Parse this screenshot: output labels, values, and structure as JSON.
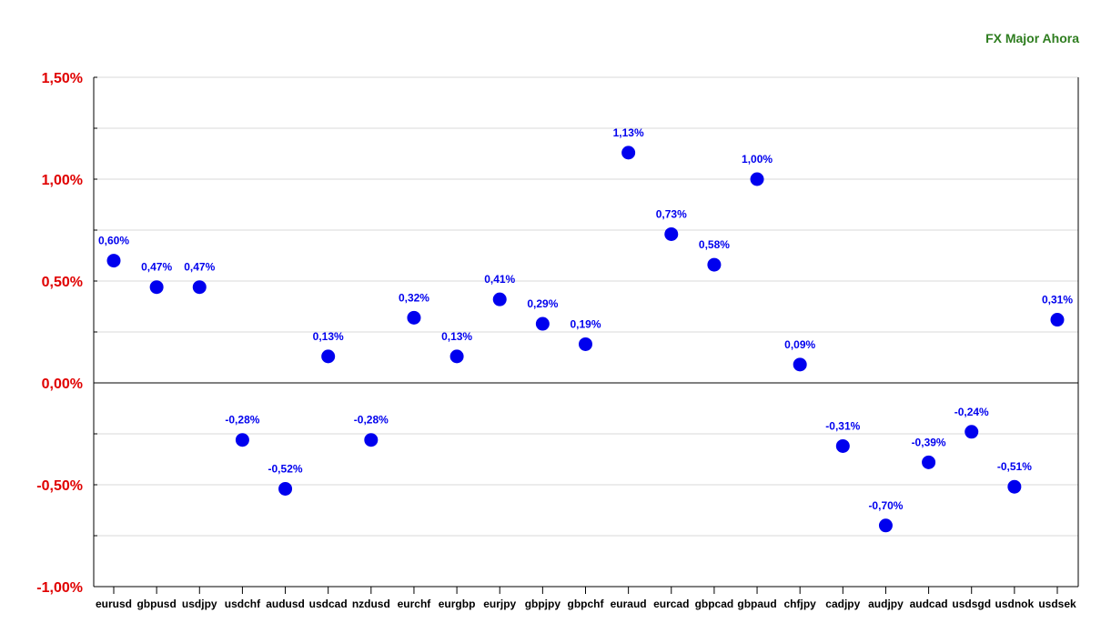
{
  "brand_label": "FX Major Ahora",
  "colors": {
    "brand": "#2e7d1f",
    "ytick": "#e00000",
    "points": "#0000ee",
    "labels": "#0000ee",
    "grid": "#d9d9d9",
    "axis": "#000000"
  },
  "chart_data": {
    "type": "scatter",
    "title": "",
    "xlabel": "",
    "ylabel": "",
    "ylim": [
      -1.0,
      1.5
    ],
    "ytick_values": [
      -1.0,
      -0.5,
      0.0,
      0.5,
      1.0,
      1.5
    ],
    "ytick_labels": [
      "-1,00%",
      "-0,50%",
      "0,00%",
      "0,50%",
      "1,00%",
      "1,50%"
    ],
    "minor_tick_step": 0.25,
    "grid": true,
    "legend": "none",
    "categories": [
      "eurusd",
      "gbpusd",
      "usdjpy",
      "usdchf",
      "audusd",
      "usdcad",
      "nzdusd",
      "eurchf",
      "eurgbp",
      "eurjpy",
      "gbpjpy",
      "gbpchf",
      "euraud",
      "eurcad",
      "gbpcad",
      "gbpaud",
      "chfjpy",
      "cadjpy",
      "audjpy",
      "audcad",
      "usdsgd",
      "usdnok",
      "usdsek"
    ],
    "values": [
      0.6,
      0.47,
      0.47,
      -0.28,
      -0.52,
      0.13,
      -0.28,
      0.32,
      0.13,
      0.41,
      0.29,
      0.19,
      1.13,
      0.73,
      0.58,
      1.0,
      0.09,
      -0.31,
      -0.7,
      -0.39,
      -0.24,
      -0.51,
      0.31
    ],
    "labels": [
      "0,60%",
      "0,47%",
      "0,47%",
      "-0,28%",
      "-0,52%",
      "0,13%",
      "-0,28%",
      "0,32%",
      "0,13%",
      "0,41%",
      "0,29%",
      "0,19%",
      "1,13%",
      "0,73%",
      "0,58%",
      "1,00%",
      "0,09%",
      "-0,31%",
      "-0,70%",
      "-0,39%",
      "-0,24%",
      "-0,51%",
      "0,31%"
    ]
  }
}
